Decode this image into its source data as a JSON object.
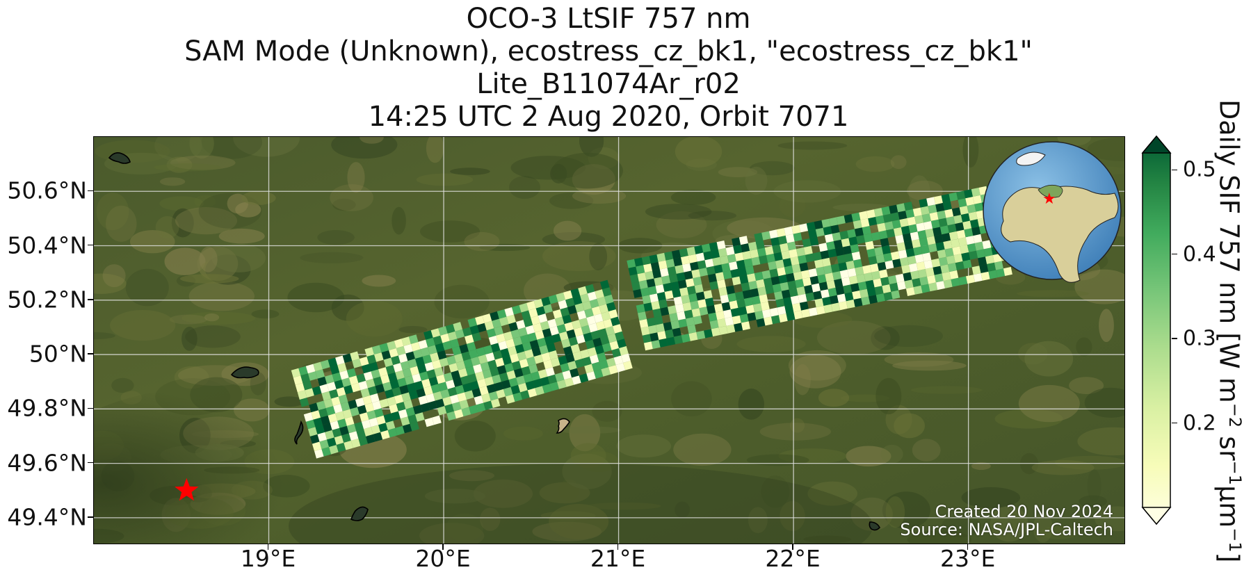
{
  "title": {
    "line1": "OCO-3 LtSIF 757 nm",
    "line2": "SAM Mode (Unknown), ecostress_cz_bk1, \"ecostress_cz_bk1\"",
    "line3": "Lite_B11074Ar_r02",
    "line4": "14:25 UTC 2 Aug 2020, Orbit 7071"
  },
  "map": {
    "lon_range": [
      18.0,
      23.9
    ],
    "lat_range": [
      49.3,
      50.8
    ],
    "lat_ticks": [
      "50.6°N",
      "50.4°N",
      "50.2°N",
      "50°N",
      "49.8°N",
      "49.6°N",
      "49.4°N"
    ],
    "lat_values": [
      50.6,
      50.4,
      50.2,
      50.0,
      49.8,
      49.6,
      49.4
    ],
    "lon_ticks": [
      "19°E",
      "20°E",
      "21°E",
      "22°E",
      "23°E"
    ],
    "lon_values": [
      19,
      20,
      21,
      22,
      23
    ],
    "target_marker": {
      "lon": 18.53,
      "lat": 49.5,
      "symbol": "star",
      "color": "#ff0000"
    },
    "background": "satellite-imagery",
    "grid": true,
    "inset_globe": {
      "center_label": "star",
      "region": "Europe"
    }
  },
  "credit": {
    "created": "Created 20 Nov 2024",
    "source": "Source: NASA/JPL-Caltech"
  },
  "colorbar": {
    "label_main": "Daily SIF 757 nm [W m",
    "sup1": "−2",
    "mid1": " sr",
    "sup2": "−1",
    "mid2": "μm",
    "sup3": "−1",
    "label_end": "]",
    "ticks": [
      "0.2",
      "0.3",
      "0.4",
      "0.5"
    ],
    "tick_values": [
      0.2,
      0.3,
      0.4,
      0.5
    ],
    "range": [
      0.1,
      0.52
    ],
    "colormap": "YlGn",
    "extend": "both"
  },
  "chart_data": {
    "type": "heatmap",
    "title": "OCO-3 LtSIF 757 nm",
    "xlabel": "",
    "ylabel": "",
    "swaths": [
      {
        "lon_start": 19.2,
        "lat_start": 49.78,
        "lon_end": 21.05,
        "lat_end": 50.12
      },
      {
        "lon_start": 21.1,
        "lat_start": 50.18,
        "lon_end": 23.2,
        "lat_end": 50.46
      }
    ],
    "value_range": [
      0.1,
      0.52
    ]
  }
}
